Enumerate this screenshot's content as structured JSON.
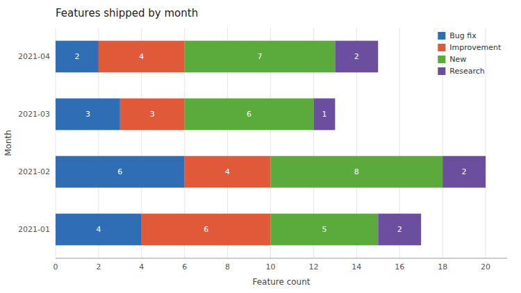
{
  "chart_data": {
    "type": "bar",
    "orientation": "horizontal",
    "stacked": true,
    "title": "Features shipped by month",
    "xlabel": "Feature count",
    "ylabel": "Month",
    "categories": [
      "2021-01",
      "2021-02",
      "2021-03",
      "2021-04"
    ],
    "series": [
      {
        "name": "Bug fix",
        "color": "#2f6db5",
        "values": [
          4,
          6,
          3,
          2
        ]
      },
      {
        "name": "Improvement",
        "color": "#e05a3a",
        "values": [
          6,
          4,
          3,
          4
        ]
      },
      {
        "name": "New",
        "color": "#5aaa3c",
        "values": [
          5,
          8,
          6,
          7
        ]
      },
      {
        "name": "Research",
        "color": "#6b4e9e",
        "values": [
          2,
          2,
          1,
          2
        ]
      }
    ],
    "xlim": [
      0,
      21
    ],
    "xticks": [
      0,
      2,
      4,
      6,
      8,
      10,
      12,
      14,
      16,
      18,
      20
    ],
    "grid": true,
    "legend": "upper right",
    "data_labels": true
  }
}
